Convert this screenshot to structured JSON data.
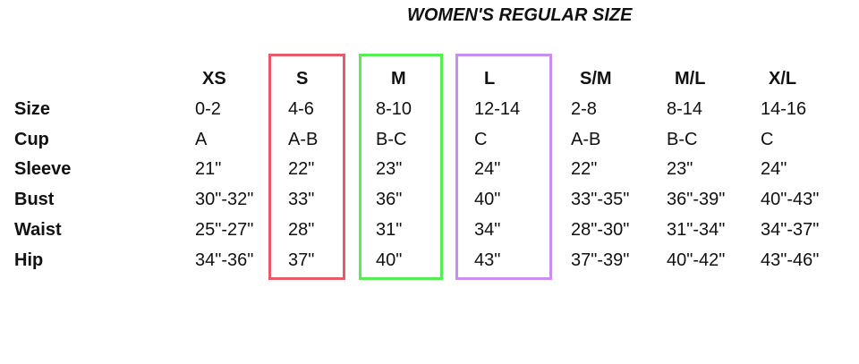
{
  "title": "WOMEN'S REGULAR SIZE",
  "highlight_colors": {
    "S": "#e85a6a",
    "M": "#55ee55",
    "L": "#c98ef0"
  },
  "columns": [
    "XS",
    "S",
    "M",
    "L",
    "S/M",
    "M/L",
    "X/L"
  ],
  "rows": [
    {
      "label": "Size",
      "values": [
        "0-2",
        "4-6",
        "8-10",
        "12-14",
        "2-8",
        "8-14",
        "14-16"
      ]
    },
    {
      "label": "Cup",
      "values": [
        "A",
        "A-B",
        "B-C",
        "C",
        "A-B",
        "B-C",
        "C"
      ]
    },
    {
      "label": "Sleeve",
      "values": [
        "21\"",
        "22\"",
        "23\"",
        "24\"",
        "22\"",
        "23\"",
        "24\""
      ]
    },
    {
      "label": "Bust",
      "values": [
        "30\"-32\"",
        "33\"",
        "36\"",
        "40\"",
        "33\"-35\"",
        "36\"-39\"",
        "40\"-43\""
      ]
    },
    {
      "label": "Waist",
      "values": [
        "25\"-27\"",
        "28\"",
        "31\"",
        "34\"",
        "28\"-30\"",
        "31\"-34\"",
        "34\"-37\""
      ]
    },
    {
      "label": "Hip",
      "values": [
        "34\"-36\"",
        "37\"",
        "40\"",
        "43\"",
        "37\"-39\"",
        "40\"-42\"",
        "43\"-46\""
      ]
    }
  ]
}
